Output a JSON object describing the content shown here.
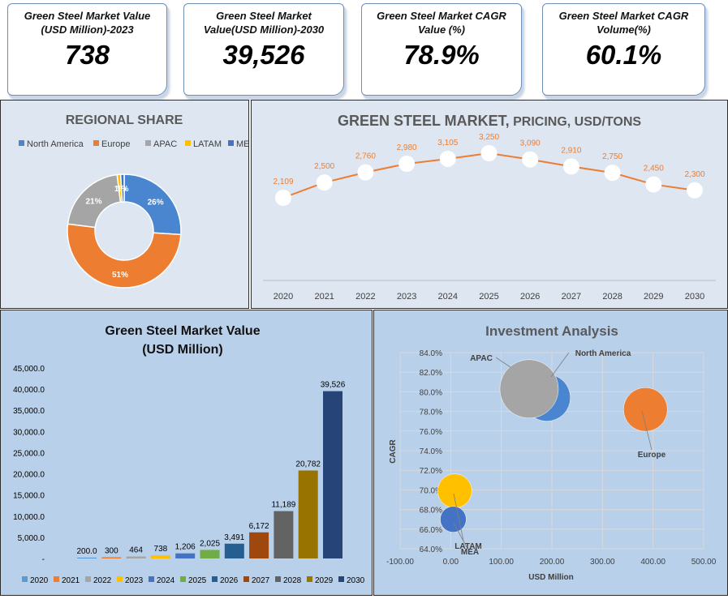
{
  "kpis": [
    {
      "label": "Green Steel Market Value (USD Million)-2023",
      "value": "738"
    },
    {
      "label": "Green Steel Market Value(USD Million)-2030",
      "value": "39,526"
    },
    {
      "label": "Green Steel Market CAGR Value (%)",
      "value": "78.9%"
    },
    {
      "label": "Green Steel Market CAGR Volume(%)",
      "value": "60.1%"
    }
  ],
  "colors": {
    "north_america": "#4a86d0",
    "europe": "#ed7d31",
    "apac": "#a5a5a5",
    "latam": "#ffc000",
    "mea": "#4472c4",
    "panel_bg": "#dde6f1",
    "panel_bg2": "#b8d0ea"
  },
  "chart_data": [
    {
      "type": "pie",
      "title": "REGIONAL SHARE",
      "legend_position": "top",
      "categories": [
        "North America",
        "Europe",
        "APAC",
        "LATAM",
        "MEA"
      ],
      "values": [
        26,
        51,
        21,
        1,
        1
      ],
      "labels": [
        "26%",
        "51%",
        "21%",
        "1%",
        "1%"
      ],
      "colors": [
        "#4a86d0",
        "#ed7d31",
        "#a5a5a5",
        "#ffc000",
        "#4472c4"
      ]
    },
    {
      "type": "line",
      "title_main": "GREEN STEEL MARKET,",
      "title_sub": " PRICING, USD/TONS",
      "categories": [
        "2020",
        "2021",
        "2022",
        "2023",
        "2024",
        "2025",
        "2026",
        "2027",
        "2028",
        "2029",
        "2030"
      ],
      "values": [
        2109,
        2500,
        2760,
        2980,
        3105,
        3250,
        3090,
        2910,
        2750,
        2450,
        2300
      ],
      "labels": [
        "2,109",
        "2,500",
        "2,760",
        "2,980",
        "3,105",
        "3,250",
        "3,090",
        "2,910",
        "2,750",
        "2,450",
        "2,300"
      ],
      "color": "#ed7d31",
      "grid": false
    },
    {
      "type": "bar",
      "title": [
        "Green Steel Market Value",
        "(USD Million)"
      ],
      "categories": [
        "2020",
        "2021",
        "2022",
        "2023",
        "2024",
        "2025",
        "2026",
        "2027",
        "2028",
        "2029",
        "2030"
      ],
      "values": [
        200,
        300,
        464,
        738,
        1206,
        2025,
        3491,
        6172,
        11189,
        20782,
        39526
      ],
      "labels": [
        "200.0",
        "300",
        "464",
        "738",
        "1,206",
        "2,025",
        "3,491",
        "6,172",
        "11,189",
        "20,782",
        "39,526"
      ],
      "colors": [
        "#5b9bd5",
        "#ed7d31",
        "#a5a5a5",
        "#ffc000",
        "#4472c4",
        "#70ad47",
        "#255e91",
        "#9e480e",
        "#636363",
        "#997300",
        "#264478"
      ],
      "ylim": [
        0,
        45000
      ],
      "yticks": [
        "-",
        "5,000.0",
        "10,000.0",
        "15,000.0",
        "20,000.0",
        "25,000.0",
        "30,000.0",
        "35,000.0",
        "40,000.0",
        "45,000.0"
      ],
      "legend_position": "bottom"
    },
    {
      "type": "scatter",
      "title": "Investment Analysis",
      "xlabel": "USD Million",
      "ylabel": "CAGR",
      "xlim": [
        -100,
        500
      ],
      "ylim": [
        64,
        84
      ],
      "xticks": [
        "-100.00",
        "0.00",
        "100.00",
        "200.00",
        "300.00",
        "400.00",
        "500.00"
      ],
      "yticks": [
        "64.0%",
        "66.0%",
        "68.0%",
        "70.0%",
        "72.0%",
        "74.0%",
        "76.0%",
        "78.0%",
        "80.0%",
        "82.0%",
        "84.0%"
      ],
      "grid": true,
      "points": [
        {
          "name": "North America",
          "x": 190,
          "y": 79.4,
          "color": "#4a86d0"
        },
        {
          "name": "APAC",
          "x": 155,
          "y": 80.3,
          "color": "#a5a5a5"
        },
        {
          "name": "Europe",
          "x": 385,
          "y": 78.2,
          "color": "#ed7d31"
        },
        {
          "name": "LATAM",
          "x": 8,
          "y": 69.9,
          "color": "#ffc000"
        },
        {
          "name": "MEA",
          "x": 5,
          "y": 67.0,
          "color": "#4472c4"
        }
      ]
    }
  ]
}
